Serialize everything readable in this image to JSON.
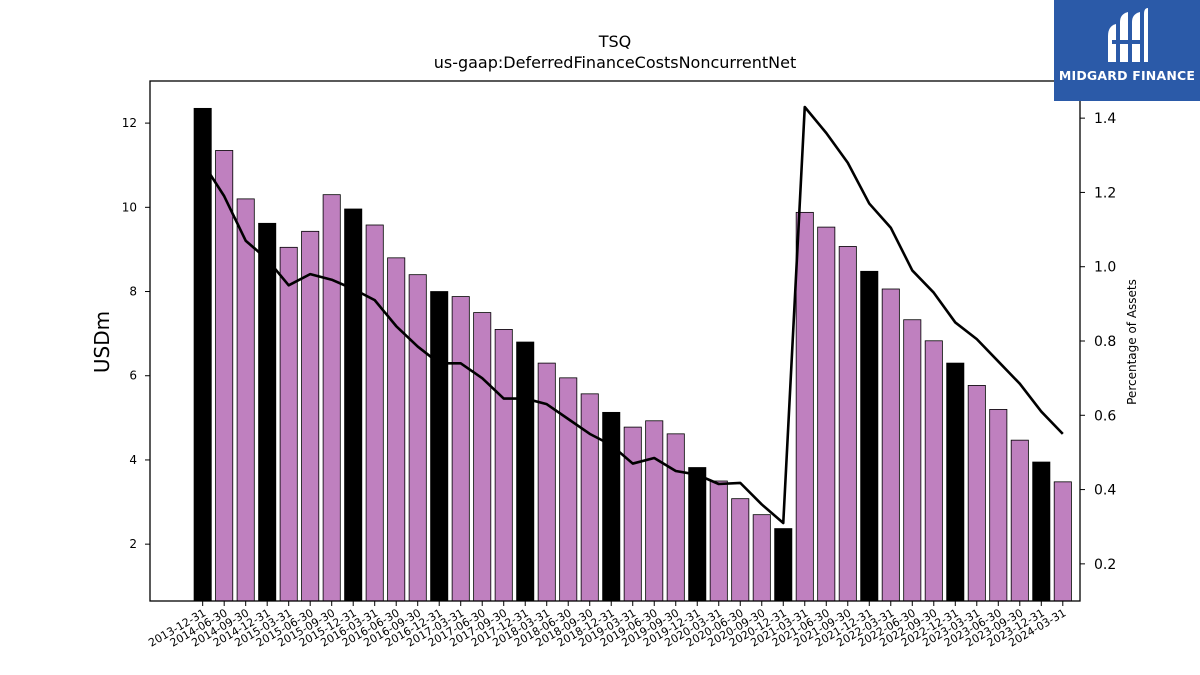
{
  "chart_data": {
    "type": "bar",
    "title": "TSQ",
    "subtitle": "us-gaap:DeferredFinanceCostsNoncurrentNet",
    "ylabel": "USDm",
    "y2label": "Percentage of Assets",
    "ylim": [
      0.65,
      13.0
    ],
    "y2lim": [
      0.1,
      1.5
    ],
    "yticks": [
      2,
      4,
      6,
      8,
      10,
      12
    ],
    "y2ticks": [
      0.2,
      0.4,
      0.6,
      0.8,
      1.0,
      1.2,
      1.4
    ],
    "categories": [
      "2013-12-31",
      "2014-06-30",
      "2014-09-30",
      "2014-12-31",
      "2015-03-31",
      "2015-06-30",
      "2015-09-30",
      "2015-12-31",
      "2016-03-31",
      "2016-06-30",
      "2016-09-30",
      "2016-12-31",
      "2017-03-31",
      "2017-06-30",
      "2017-09-30",
      "2017-12-31",
      "2018-03-31",
      "2018-06-30",
      "2018-09-30",
      "2018-12-31",
      "2019-03-31",
      "2019-06-30",
      "2019-09-30",
      "2019-12-31",
      "2020-03-31",
      "2020-06-30",
      "2020-09-30",
      "2020-12-31",
      "2021-03-31",
      "2021-06-30",
      "2021-09-30",
      "2021-12-31",
      "2022-03-31",
      "2022-06-30",
      "2022-09-30",
      "2022-12-31",
      "2023-03-31",
      "2023-06-30",
      "2023-09-30",
      "2023-12-31",
      "2024-03-31"
    ],
    "series": [
      {
        "kind": "bar",
        "values": [
          12.35,
          11.35,
          10.2,
          9.62,
          9.05,
          9.43,
          10.3,
          9.96,
          9.58,
          8.8,
          8.4,
          8.0,
          7.88,
          7.5,
          7.1,
          6.8,
          6.3,
          5.95,
          5.57,
          5.13,
          4.78,
          4.93,
          4.62,
          3.82,
          3.5,
          3.08,
          2.7,
          2.37,
          9.88,
          9.53,
          9.07,
          8.48,
          8.06,
          7.33,
          6.83,
          6.3,
          5.77,
          5.2,
          4.47,
          3.95,
          3.48
        ],
        "year_end_color": "#000000",
        "other_color": "#bf80bf"
      },
      {
        "kind": "line",
        "axis": "right",
        "color": "#000000",
        "values": [
          1.28,
          1.19,
          1.07,
          1.02,
          0.95,
          0.98,
          0.965,
          0.94,
          0.91,
          0.84,
          0.785,
          0.74,
          0.74,
          0.7,
          0.645,
          0.645,
          0.63,
          0.59,
          0.55,
          0.52,
          0.47,
          0.485,
          0.45,
          0.44,
          0.415,
          0.418,
          0.36,
          0.31,
          1.43,
          1.36,
          1.28,
          1.17,
          1.105,
          0.99,
          0.93,
          0.85,
          0.805,
          0.745,
          0.685,
          0.61,
          0.55
        ]
      }
    ],
    "legend": "none",
    "grid": false
  },
  "logo": {
    "text": "MIDGARD FINANCE",
    "icon": "midgard-m-logo-icon",
    "background": "#2b5aa8"
  }
}
